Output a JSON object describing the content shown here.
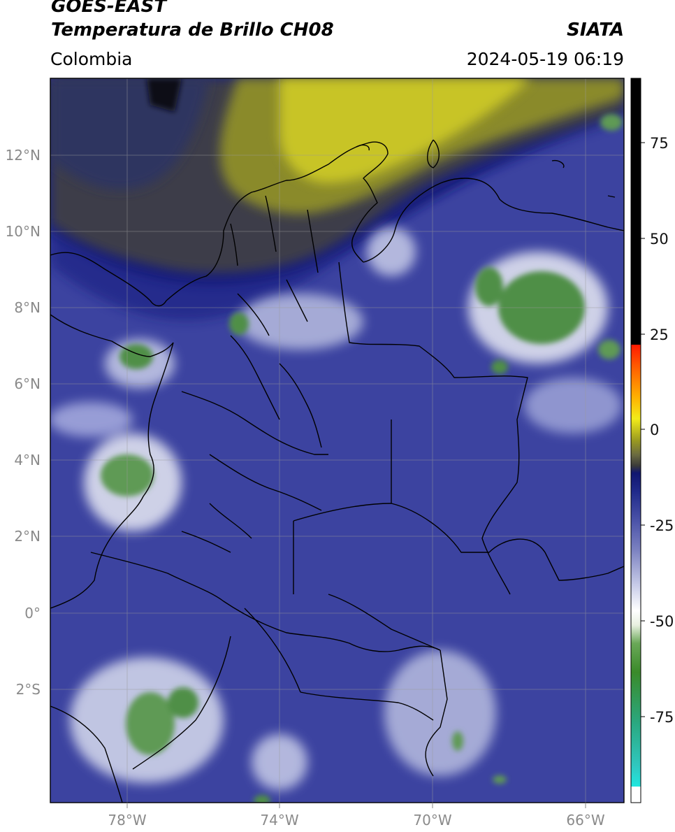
{
  "header": {
    "satellite": "GOES-EAST",
    "product": "Temperatura de Brillo CH08",
    "region": "Colombia",
    "source": "SIATA",
    "datetime": "2024-05-19 06:19"
  },
  "map": {
    "lon_range": [
      -80,
      -65
    ],
    "lat_range": [
      -5.2,
      14.0
    ],
    "lon_ticks": [
      "78°W",
      "74°W",
      "70°W",
      "66°W"
    ],
    "lat_ticks": [
      "12°N",
      "10°N",
      "8°N",
      "6°N",
      "4°N",
      "2°N",
      "0°",
      "2°S"
    ],
    "gridlines": true
  },
  "colorbar": {
    "ticks": [
      "75",
      "50",
      "25",
      "0",
      "-25",
      "-50",
      "-75"
    ],
    "range": [
      -95,
      90
    ],
    "colors": {
      "warm": "#000000",
      "red": "#ff2a00",
      "yellow": "#f2ec1a",
      "olive": "#8a8a20",
      "navy": "#151a7a",
      "blue": "#4048a0",
      "white": "#ffffff",
      "green": "#3a8a2a",
      "cyan": "#2ae0d8"
    }
  }
}
